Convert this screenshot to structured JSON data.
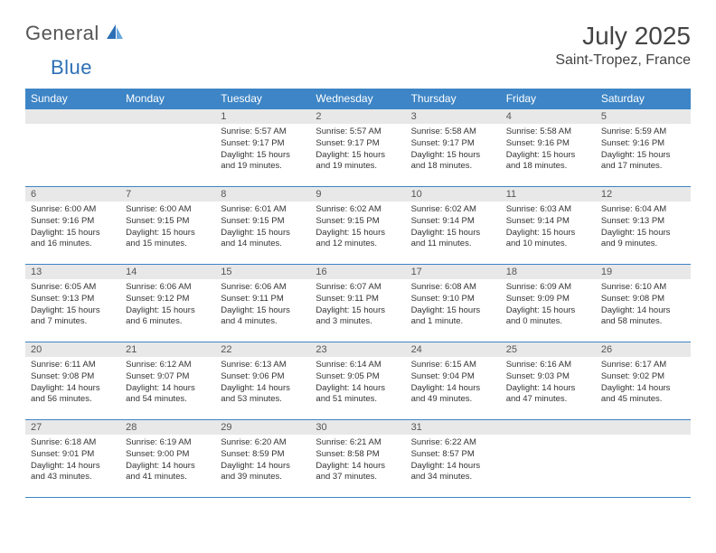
{
  "logo": {
    "general": "General",
    "blue": "Blue"
  },
  "title": "July 2025",
  "location": "Saint-Tropez, France",
  "colors": {
    "header_bg": "#3d85c6",
    "header_fg": "#ffffff",
    "daynum_bg": "#e8e8e8",
    "row_border": "#3d85c6",
    "text": "#333333",
    "logo_gray": "#555555",
    "logo_blue": "#2d6fb5"
  },
  "day_headers": [
    "Sunday",
    "Monday",
    "Tuesday",
    "Wednesday",
    "Thursday",
    "Friday",
    "Saturday"
  ],
  "weeks": [
    [
      null,
      null,
      {
        "n": "1",
        "sunrise": "5:57 AM",
        "sunset": "9:17 PM",
        "daylight": "15 hours and 19 minutes."
      },
      {
        "n": "2",
        "sunrise": "5:57 AM",
        "sunset": "9:17 PM",
        "daylight": "15 hours and 19 minutes."
      },
      {
        "n": "3",
        "sunrise": "5:58 AM",
        "sunset": "9:17 PM",
        "daylight": "15 hours and 18 minutes."
      },
      {
        "n": "4",
        "sunrise": "5:58 AM",
        "sunset": "9:16 PM",
        "daylight": "15 hours and 18 minutes."
      },
      {
        "n": "5",
        "sunrise": "5:59 AM",
        "sunset": "9:16 PM",
        "daylight": "15 hours and 17 minutes."
      }
    ],
    [
      {
        "n": "6",
        "sunrise": "6:00 AM",
        "sunset": "9:16 PM",
        "daylight": "15 hours and 16 minutes."
      },
      {
        "n": "7",
        "sunrise": "6:00 AM",
        "sunset": "9:15 PM",
        "daylight": "15 hours and 15 minutes."
      },
      {
        "n": "8",
        "sunrise": "6:01 AM",
        "sunset": "9:15 PM",
        "daylight": "15 hours and 14 minutes."
      },
      {
        "n": "9",
        "sunrise": "6:02 AM",
        "sunset": "9:15 PM",
        "daylight": "15 hours and 12 minutes."
      },
      {
        "n": "10",
        "sunrise": "6:02 AM",
        "sunset": "9:14 PM",
        "daylight": "15 hours and 11 minutes."
      },
      {
        "n": "11",
        "sunrise": "6:03 AM",
        "sunset": "9:14 PM",
        "daylight": "15 hours and 10 minutes."
      },
      {
        "n": "12",
        "sunrise": "6:04 AM",
        "sunset": "9:13 PM",
        "daylight": "15 hours and 9 minutes."
      }
    ],
    [
      {
        "n": "13",
        "sunrise": "6:05 AM",
        "sunset": "9:13 PM",
        "daylight": "15 hours and 7 minutes."
      },
      {
        "n": "14",
        "sunrise": "6:06 AM",
        "sunset": "9:12 PM",
        "daylight": "15 hours and 6 minutes."
      },
      {
        "n": "15",
        "sunrise": "6:06 AM",
        "sunset": "9:11 PM",
        "daylight": "15 hours and 4 minutes."
      },
      {
        "n": "16",
        "sunrise": "6:07 AM",
        "sunset": "9:11 PM",
        "daylight": "15 hours and 3 minutes."
      },
      {
        "n": "17",
        "sunrise": "6:08 AM",
        "sunset": "9:10 PM",
        "daylight": "15 hours and 1 minute."
      },
      {
        "n": "18",
        "sunrise": "6:09 AM",
        "sunset": "9:09 PM",
        "daylight": "15 hours and 0 minutes."
      },
      {
        "n": "19",
        "sunrise": "6:10 AM",
        "sunset": "9:08 PM",
        "daylight": "14 hours and 58 minutes."
      }
    ],
    [
      {
        "n": "20",
        "sunrise": "6:11 AM",
        "sunset": "9:08 PM",
        "daylight": "14 hours and 56 minutes."
      },
      {
        "n": "21",
        "sunrise": "6:12 AM",
        "sunset": "9:07 PM",
        "daylight": "14 hours and 54 minutes."
      },
      {
        "n": "22",
        "sunrise": "6:13 AM",
        "sunset": "9:06 PM",
        "daylight": "14 hours and 53 minutes."
      },
      {
        "n": "23",
        "sunrise": "6:14 AM",
        "sunset": "9:05 PM",
        "daylight": "14 hours and 51 minutes."
      },
      {
        "n": "24",
        "sunrise": "6:15 AM",
        "sunset": "9:04 PM",
        "daylight": "14 hours and 49 minutes."
      },
      {
        "n": "25",
        "sunrise": "6:16 AM",
        "sunset": "9:03 PM",
        "daylight": "14 hours and 47 minutes."
      },
      {
        "n": "26",
        "sunrise": "6:17 AM",
        "sunset": "9:02 PM",
        "daylight": "14 hours and 45 minutes."
      }
    ],
    [
      {
        "n": "27",
        "sunrise": "6:18 AM",
        "sunset": "9:01 PM",
        "daylight": "14 hours and 43 minutes."
      },
      {
        "n": "28",
        "sunrise": "6:19 AM",
        "sunset": "9:00 PM",
        "daylight": "14 hours and 41 minutes."
      },
      {
        "n": "29",
        "sunrise": "6:20 AM",
        "sunset": "8:59 PM",
        "daylight": "14 hours and 39 minutes."
      },
      {
        "n": "30",
        "sunrise": "6:21 AM",
        "sunset": "8:58 PM",
        "daylight": "14 hours and 37 minutes."
      },
      {
        "n": "31",
        "sunrise": "6:22 AM",
        "sunset": "8:57 PM",
        "daylight": "14 hours and 34 minutes."
      },
      null,
      null
    ]
  ],
  "labels": {
    "sunrise": "Sunrise:",
    "sunset": "Sunset:",
    "daylight": "Daylight:"
  }
}
